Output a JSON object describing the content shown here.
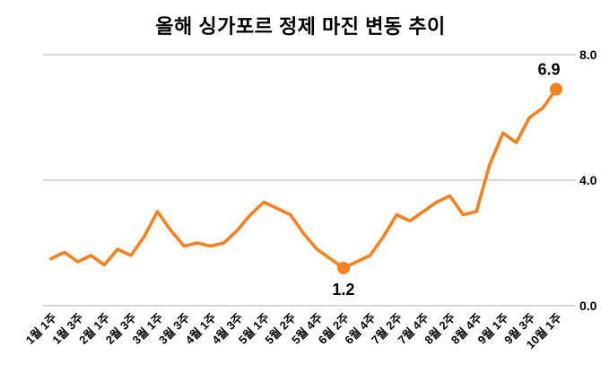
{
  "colors": {
    "line": "#F58220",
    "grid": "#C0C0C0",
    "text": "#000000",
    "background": "#FFFFFF"
  },
  "chart_data": {
    "type": "line",
    "title": "올해 싱가포르 정제 마진 변동 추이",
    "xlabel": "",
    "ylabel": "",
    "ylim": [
      0,
      8
    ],
    "yticks": [
      8.0,
      4.0,
      0.0
    ],
    "ytick_labels": [
      "8.0",
      "4.0",
      "0.0"
    ],
    "grid": "horizontal",
    "legend": "none",
    "label_every": 2,
    "categories": [
      "1월 1주",
      "1월 3주",
      "2월 1주",
      "2월 3주",
      "3월 1주",
      "3월 3주",
      "4월 1주",
      "4월 3주",
      "5월 1주",
      "5월 2주",
      "5월 4주",
      "6월 2주",
      "6월 4주",
      "7월 2주",
      "7월 4주",
      "8월 2주",
      "8월 4주",
      "9월 1주",
      "9월 3주",
      "10월 1주"
    ],
    "values": [
      1.5,
      1.7,
      1.4,
      1.6,
      1.3,
      1.8,
      1.6,
      2.2,
      3.0,
      2.4,
      1.9,
      2.0,
      1.9,
      2.0,
      2.4,
      2.9,
      3.3,
      3.1,
      2.9,
      2.3,
      1.8,
      1.5,
      1.2,
      1.4,
      1.6,
      2.2,
      2.9,
      2.7,
      3.0,
      3.3,
      3.5,
      2.9,
      3.0,
      4.5,
      5.5,
      5.2,
      6.0,
      6.3,
      6.9
    ],
    "annotations": [
      {
        "index": 22,
        "value": 1.2,
        "label": "1.2",
        "position": "below"
      },
      {
        "index": 38,
        "value": 6.9,
        "label": "6.9",
        "position": "above"
      }
    ]
  }
}
